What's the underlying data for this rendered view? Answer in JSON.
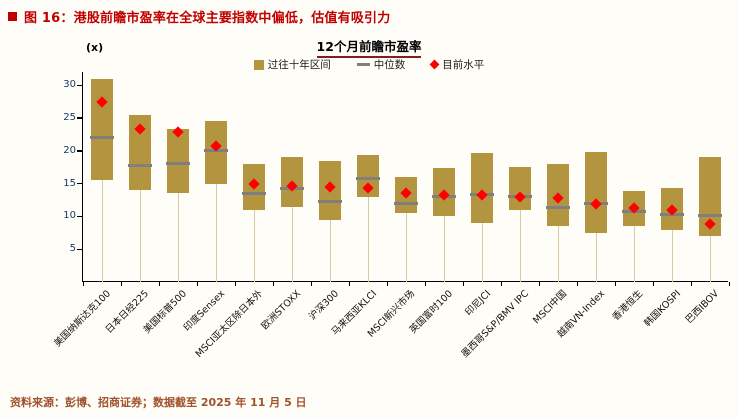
{
  "figure": {
    "title": "图 16：港股前瞻市盈率在全球主要指数中偏低，估值有吸引力",
    "source": "资料来源：彭博、招商证券；数据截至 2025 年 11 月 5 日"
  },
  "colors": {
    "accent_red": "#c00000",
    "range_bar": "#b3953f",
    "median_gray": "#7f7f7f",
    "current_red": "#ff0000",
    "stem": "#d9cba0",
    "axis": "#000000",
    "ytick_text": "#17375e"
  },
  "chart_data": {
    "type": "bar",
    "subtype": "floating-range-bar",
    "title": "12个月前瞻市盈率",
    "unit_label": "(x)",
    "legend": [
      {
        "label": "过往十年区间",
        "marker": "bar",
        "color": "#b3953f"
      },
      {
        "label": "中位数",
        "marker": "dash",
        "color": "#7f7f7f"
      },
      {
        "label": "目前水平",
        "marker": "diamond",
        "color": "#ff0000"
      }
    ],
    "legend_position": "top-center",
    "grid": false,
    "ylim": [
      0,
      32
    ],
    "yticks": [
      5,
      10,
      15,
      20,
      25,
      30
    ],
    "categories": [
      "美国纳斯达克100",
      "日本日经225",
      "美国标普500",
      "印度Sensex",
      "MSCI亚太区除日本外",
      "欧洲STOXX",
      "沪深300",
      "马来西亚KLCI",
      "MSCI新兴市场",
      "英国富时100",
      "印尼JCI",
      "墨西哥S&P/BMV IPC",
      "MSCI中国",
      "越南VN-Index",
      "香港恒生",
      "韩国KOSPI",
      "巴西IBOV"
    ],
    "series": {
      "range_low": [
        15.5,
        14.0,
        13.5,
        15.0,
        11.0,
        11.5,
        9.5,
        13.0,
        10.5,
        10.0,
        9.0,
        11.0,
        8.5,
        7.5,
        8.5,
        8.0,
        7.0
      ],
      "range_high": [
        31.0,
        25.5,
        23.3,
        24.5,
        18.0,
        19.0,
        18.5,
        19.3,
        16.0,
        17.3,
        19.7,
        17.5,
        18.0,
        19.8,
        13.8,
        14.3,
        19.0
      ],
      "median": [
        22.0,
        17.8,
        18.0,
        20.0,
        13.5,
        14.3,
        12.3,
        15.8,
        12.0,
        13.0,
        13.3,
        13.0,
        11.3,
        12.0,
        10.8,
        10.3,
        10.2
      ],
      "current": [
        27.5,
        23.3,
        22.8,
        20.7,
        15.0,
        14.7,
        14.5,
        14.3,
        13.5,
        13.2,
        13.2,
        12.9,
        12.8,
        11.9,
        11.3,
        11.0,
        8.8
      ]
    }
  }
}
